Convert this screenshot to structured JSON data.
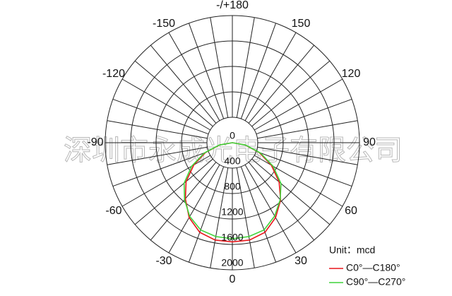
{
  "chart_data": {
    "type": "polar",
    "watermark": "深圳市永成光电子有限公司",
    "unit_label": "Unit：mcd",
    "rlim": [
      0,
      2000
    ],
    "rticks": [
      0,
      400,
      800,
      1200,
      1600,
      2000
    ],
    "thetaticks": [
      {
        "value": 180,
        "label": "-/+180"
      },
      -150,
      150,
      -120,
      120,
      -90,
      90,
      -60,
      60,
      -30,
      30,
      0
    ],
    "thetagrid_step": 10,
    "angles": [
      -90,
      -80,
      -70,
      -60,
      -50,
      -40,
      -30,
      -20,
      -10,
      0,
      10,
      20,
      30,
      40,
      50,
      60,
      70,
      80,
      90
    ],
    "series": [
      {
        "name": "C0°—C180°",
        "color": "#e8161b",
        "values": [
          0,
          200,
          450,
          700,
          950,
          1150,
          1360,
          1500,
          1555,
          1560,
          1555,
          1500,
          1360,
          1180,
          960,
          710,
          450,
          200,
          0
        ]
      },
      {
        "name": "C90°—C270°",
        "color": "#3fd43a",
        "values": [
          0,
          210,
          470,
          740,
          990,
          1170,
          1340,
          1460,
          1500,
          1510,
          1500,
          1460,
          1330,
          1170,
          1000,
          740,
          470,
          210,
          0
        ]
      }
    ]
  }
}
